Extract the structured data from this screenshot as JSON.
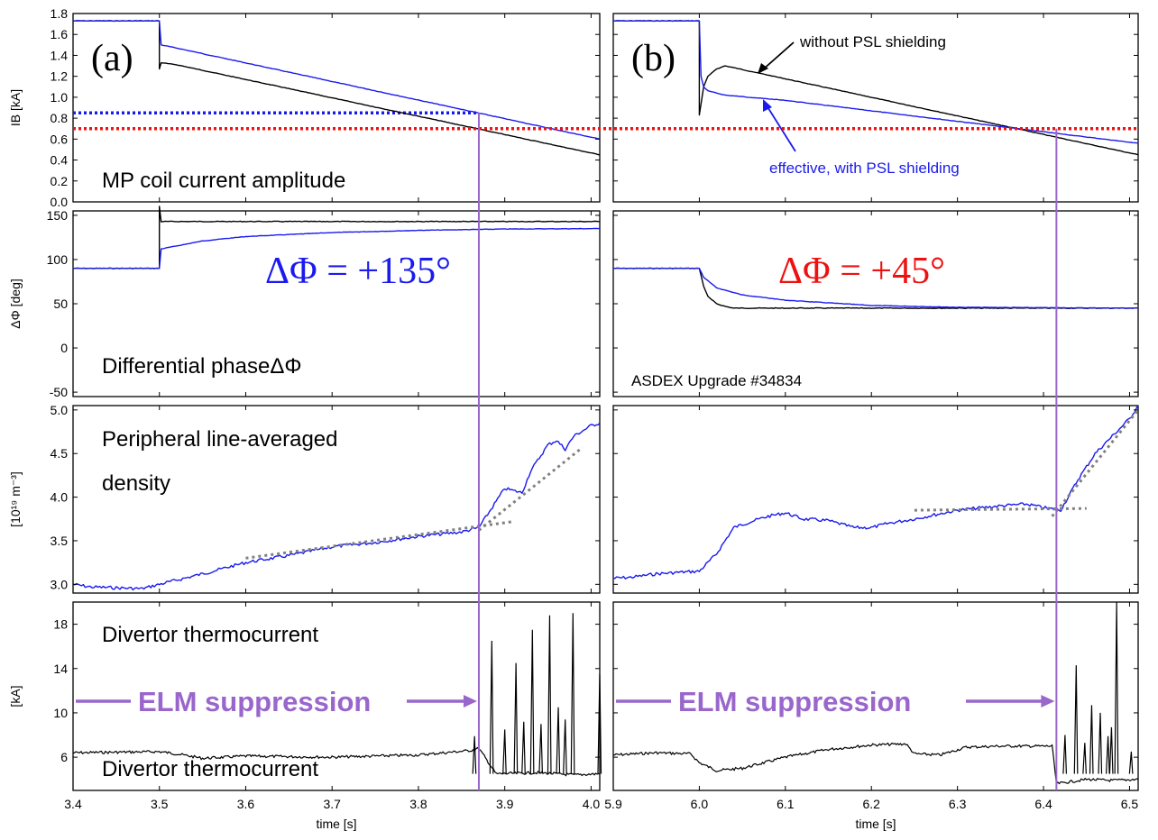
{
  "colors": {
    "black": "#000000",
    "blue": "#1a1aee",
    "red": "#ee1111",
    "purple": "#9966cc",
    "gray": "#808080"
  },
  "chart_data": [
    {
      "type": "line",
      "panel": "a",
      "row": "coil",
      "label": "(a)",
      "ylabel": "IB [kA]",
      "annotation": "MP coil current amplitude",
      "xlim": [
        3.4,
        4.01
      ],
      "ylim": [
        0,
        1.8
      ],
      "yticks": [
        "0.0",
        "0.2",
        "0.4",
        "0.6",
        "0.8",
        "1.0",
        "1.2",
        "1.4",
        "1.6",
        "1.8"
      ],
      "threshold_blue": 0.85,
      "threshold_red": 0.7,
      "series": [
        {
          "color": "black",
          "x": [
            3.4,
            3.5,
            3.5,
            3.502,
            3.52,
            4.01
          ],
          "y": [
            1.73,
            1.73,
            1.27,
            1.33,
            1.31,
            0.45
          ]
        },
        {
          "color": "blue",
          "x": [
            3.4,
            3.5,
            3.502,
            3.52,
            4.01
          ],
          "y": [
            1.73,
            1.73,
            1.5,
            1.47,
            0.6
          ]
        }
      ]
    },
    {
      "type": "line",
      "panel": "b",
      "row": "coil",
      "label": "(b)",
      "xlim": [
        5.9,
        6.51
      ],
      "ylim": [
        0,
        1.8
      ],
      "threshold_red": 0.7,
      "annotation_black": "without PSL shielding",
      "annotation_blue": "effective, with PSL shielding",
      "series": [
        {
          "color": "black",
          "x": [
            5.9,
            6.0,
            6.0,
            6.005,
            6.01,
            6.02,
            6.03,
            6.51
          ],
          "y": [
            1.73,
            1.73,
            0.83,
            1.1,
            1.2,
            1.27,
            1.3,
            0.45
          ]
        },
        {
          "color": "blue",
          "x": [
            5.9,
            6.0,
            6.002,
            6.005,
            6.01,
            6.03,
            6.1,
            6.51
          ],
          "y": [
            1.73,
            1.73,
            1.2,
            1.1,
            1.06,
            1.02,
            0.97,
            0.56
          ]
        }
      ]
    },
    {
      "type": "line",
      "panel": "a",
      "row": "phase",
      "ylabel": "ΔΦ [deg]",
      "annotation": "Differential phaseΔΦ",
      "big_label": "ΔΦ = +135°",
      "xlim": [
        3.4,
        4.01
      ],
      "ylim": [
        -55,
        155
      ],
      "yticks": [
        "-50",
        "0",
        "50",
        "100",
        "150"
      ],
      "series": [
        {
          "color": "black",
          "x": [
            3.4,
            3.5,
            3.5,
            3.502,
            4.01
          ],
          "y": [
            90,
            90,
            160,
            143,
            143
          ]
        },
        {
          "color": "blue",
          "x": [
            3.4,
            3.5,
            3.502,
            3.55,
            3.6,
            3.7,
            3.8,
            3.9,
            4.01
          ],
          "y": [
            90,
            90,
            112,
            121,
            126,
            130.5,
            133,
            134.5,
            135
          ]
        }
      ]
    },
    {
      "type": "line",
      "panel": "b",
      "row": "phase",
      "big_label": "ΔΦ = +45°",
      "footer": "ASDEX Upgrade #34834",
      "xlim": [
        5.9,
        6.51
      ],
      "ylim": [
        -55,
        155
      ],
      "series": [
        {
          "color": "black",
          "x": [
            5.9,
            6.0,
            6.005,
            6.01,
            6.02,
            6.03,
            6.04,
            6.51
          ],
          "y": [
            90,
            90,
            70,
            58,
            50,
            47,
            45,
            45
          ]
        },
        {
          "color": "blue",
          "x": [
            5.9,
            6.0,
            6.005,
            6.02,
            6.05,
            6.1,
            6.2,
            6.3,
            6.51
          ],
          "y": [
            90,
            90,
            80,
            68,
            60,
            54,
            48,
            46,
            45
          ]
        }
      ]
    },
    {
      "type": "line",
      "panel": "a",
      "row": "density",
      "ylabel": "[10¹⁹ m⁻³]",
      "annotation_lines": [
        "Peripheral line-averaged",
        "density"
      ],
      "xlim": [
        3.4,
        4.01
      ],
      "ylim": [
        2.9,
        5.05
      ],
      "yticks": [
        "3.0",
        "3.5",
        "4.0",
        "4.5",
        "5.0"
      ],
      "fit1": {
        "x": [
          3.6,
          3.91
        ],
        "y": [
          3.3,
          3.72
        ]
      },
      "fit2": {
        "x": [
          3.87,
          3.99
        ],
        "y": [
          3.62,
          4.57
        ]
      },
      "series": [
        {
          "color": "blue",
          "x": [
            3.4,
            3.42,
            3.45,
            3.48,
            3.5,
            3.55,
            3.6,
            3.65,
            3.7,
            3.75,
            3.8,
            3.85,
            3.87,
            3.88,
            3.9,
            3.92,
            3.93,
            3.95,
            3.96,
            3.97,
            3.98,
            4.0,
            4.01
          ],
          "y": [
            3.0,
            2.97,
            2.96,
            2.95,
            3.0,
            3.12,
            3.25,
            3.33,
            3.43,
            3.48,
            3.55,
            3.6,
            3.65,
            3.8,
            4.1,
            4.05,
            4.3,
            4.6,
            4.65,
            4.55,
            4.7,
            4.82,
            4.85
          ]
        }
      ]
    },
    {
      "type": "line",
      "panel": "b",
      "row": "density",
      "xlim": [
        5.9,
        6.51
      ],
      "ylim": [
        2.9,
        5.05
      ],
      "fit1": {
        "x": [
          6.25,
          6.45
        ],
        "y": [
          3.85,
          3.87
        ]
      },
      "fit2": {
        "x": [
          6.41,
          6.51
        ],
        "y": [
          3.78,
          5.0
        ]
      },
      "series": [
        {
          "color": "blue",
          "x": [
            5.9,
            5.92,
            5.95,
            5.98,
            6.0,
            6.02,
            6.04,
            6.06,
            6.08,
            6.1,
            6.12,
            6.15,
            6.18,
            6.2,
            6.22,
            6.25,
            6.3,
            6.35,
            6.38,
            6.4,
            6.42,
            6.44,
            6.46,
            6.48,
            6.5,
            6.51
          ],
          "y": [
            3.07,
            3.08,
            3.12,
            3.14,
            3.15,
            3.35,
            3.65,
            3.72,
            3.78,
            3.82,
            3.75,
            3.73,
            3.65,
            3.65,
            3.7,
            3.75,
            3.85,
            3.9,
            3.92,
            3.88,
            3.85,
            4.2,
            4.5,
            4.7,
            4.9,
            5.05
          ]
        }
      ]
    },
    {
      "type": "line",
      "panel": "a",
      "row": "thermo",
      "ylabel": "[kA]",
      "annotation": "Divertor thermocurrent",
      "arrow_label": "ELM suppression",
      "xlabel": "time [s]",
      "xlim": [
        3.4,
        4.01
      ],
      "ylim": [
        3,
        20
      ],
      "yticks": [
        "6",
        "10",
        "14",
        "18"
      ],
      "xticks": [
        "3.4",
        "3.5",
        "3.6",
        "3.7",
        "3.8",
        "3.9",
        "4.0"
      ],
      "baseline": [
        {
          "x": 3.4,
          "y": 6.4
        },
        {
          "x": 3.5,
          "y": 6.5
        },
        {
          "x": 3.52,
          "y": 6.3
        },
        {
          "x": 3.55,
          "y": 5.9
        },
        {
          "x": 3.6,
          "y": 6.1
        },
        {
          "x": 3.7,
          "y": 6.0
        },
        {
          "x": 3.8,
          "y": 6.2
        },
        {
          "x": 3.86,
          "y": 6.6
        },
        {
          "x": 3.87,
          "y": 6.8
        },
        {
          "x": 3.89,
          "y": 4.5
        },
        {
          "x": 3.94,
          "y": 4.6
        },
        {
          "x": 3.98,
          "y": 4.4
        },
        {
          "x": 4.01,
          "y": 4.5
        }
      ],
      "spikes": [
        {
          "x": 3.865,
          "y": 7.9
        },
        {
          "x": 3.885,
          "y": 16.5
        },
        {
          "x": 3.9,
          "y": 8.5
        },
        {
          "x": 3.913,
          "y": 14.5
        },
        {
          "x": 3.922,
          "y": 9.2
        },
        {
          "x": 3.932,
          "y": 17.5
        },
        {
          "x": 3.942,
          "y": 9.0
        },
        {
          "x": 3.952,
          "y": 18.8
        },
        {
          "x": 3.962,
          "y": 10.5
        },
        {
          "x": 3.97,
          "y": 9.4
        },
        {
          "x": 3.979,
          "y": 19.0
        },
        {
          "x": 4.01,
          "y": 13.5
        }
      ]
    },
    {
      "type": "line",
      "panel": "b",
      "row": "thermo",
      "arrow_label": "ELM suppression",
      "xlabel": "time [s]",
      "xlim": [
        5.9,
        6.51
      ],
      "ylim": [
        3,
        20
      ],
      "xticks": [
        "5.9",
        "6.0",
        "6.1",
        "6.2",
        "6.3",
        "6.4",
        "6.5"
      ],
      "baseline": [
        {
          "x": 5.9,
          "y": 6.2
        },
        {
          "x": 5.95,
          "y": 6.4
        },
        {
          "x": 5.99,
          "y": 6.3
        },
        {
          "x": 6.0,
          "y": 5.5
        },
        {
          "x": 6.02,
          "y": 4.8
        },
        {
          "x": 6.05,
          "y": 5.0
        },
        {
          "x": 6.1,
          "y": 6.0
        },
        {
          "x": 6.15,
          "y": 6.7
        },
        {
          "x": 6.2,
          "y": 7.1
        },
        {
          "x": 6.24,
          "y": 7.2
        },
        {
          "x": 6.25,
          "y": 6.3
        },
        {
          "x": 6.28,
          "y": 6.2
        },
        {
          "x": 6.31,
          "y": 6.9
        },
        {
          "x": 6.35,
          "y": 7.0
        },
        {
          "x": 6.41,
          "y": 7.0
        },
        {
          "x": 6.415,
          "y": 3.6
        },
        {
          "x": 6.45,
          "y": 4.0
        },
        {
          "x": 6.48,
          "y": 3.9
        },
        {
          "x": 6.51,
          "y": 4.0
        }
      ],
      "spikes": [
        {
          "x": 6.425,
          "y": 8.0
        },
        {
          "x": 6.438,
          "y": 14.3
        },
        {
          "x": 6.448,
          "y": 7.3
        },
        {
          "x": 6.456,
          "y": 10.7
        },
        {
          "x": 6.466,
          "y": 10.0
        },
        {
          "x": 6.475,
          "y": 7.9
        },
        {
          "x": 6.479,
          "y": 8.7
        },
        {
          "x": 6.485,
          "y": 20.0
        },
        {
          "x": 6.502,
          "y": 6.5
        }
      ]
    }
  ],
  "suppression_end": {
    "a": 3.87,
    "b": 6.415
  }
}
